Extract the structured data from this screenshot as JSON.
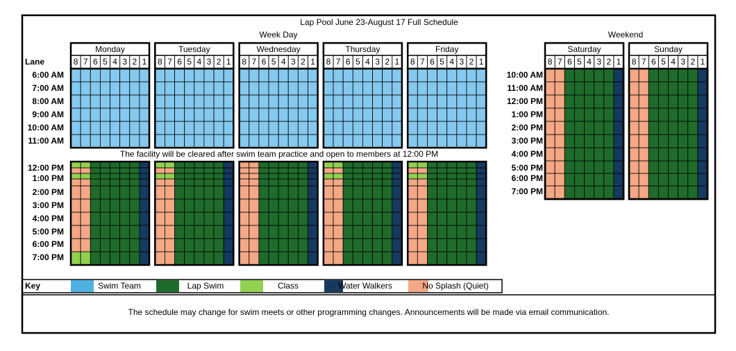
{
  "title": "Lap Pool June 23-August 17 Full Schedule",
  "week_day_label": "Week Day",
  "weekend_label": "Weekend",
  "lane_header": "Lane",
  "lanes": [
    8,
    7,
    6,
    5,
    4,
    3,
    2,
    1
  ],
  "weekdays": [
    "Monday",
    "Tuesday",
    "Wednesday",
    "Thursday",
    "Friday"
  ],
  "weekend_days": [
    "Saturday",
    "Sunday"
  ],
  "weekday_am_times": [
    "6:00 AM",
    "7:00 AM",
    "8:00 AM",
    "9:00 AM",
    "10:00 AM",
    "11:00 AM"
  ],
  "note": "The facility will be cleared after swim team practice and open to members at 12:00 PM",
  "weekday_pm_times": [
    "12:00 PM",
    "1:00 PM",
    "2:00 PM",
    "3:00 PM",
    "4:00 PM",
    "5:00 PM",
    "6:00 PM",
    "7:00 PM"
  ],
  "weekend_times": [
    "10:00 AM",
    "11:00 AM",
    "12:00 PM",
    "1:00 PM",
    "2:00 PM",
    "3:00 PM",
    "4:00 PM",
    "5:00 PM",
    "6:00 PM",
    "7:00 PM"
  ],
  "key": {
    "label": "Key",
    "items": [
      {
        "name": "Swim Team",
        "color": "#4db1e2"
      },
      {
        "name": "Lap Swim",
        "color": "#1f6b2b"
      },
      {
        "name": "Class",
        "color": "#92d050"
      },
      {
        "name": "Water Walkers",
        "color": "#163a5f"
      },
      {
        "name": "No Splash (Quiet)",
        "color": "#f4a886"
      }
    ]
  },
  "footer": "The schedule may change for swim meets or other programming changes. Announcements will be made via email communication."
}
